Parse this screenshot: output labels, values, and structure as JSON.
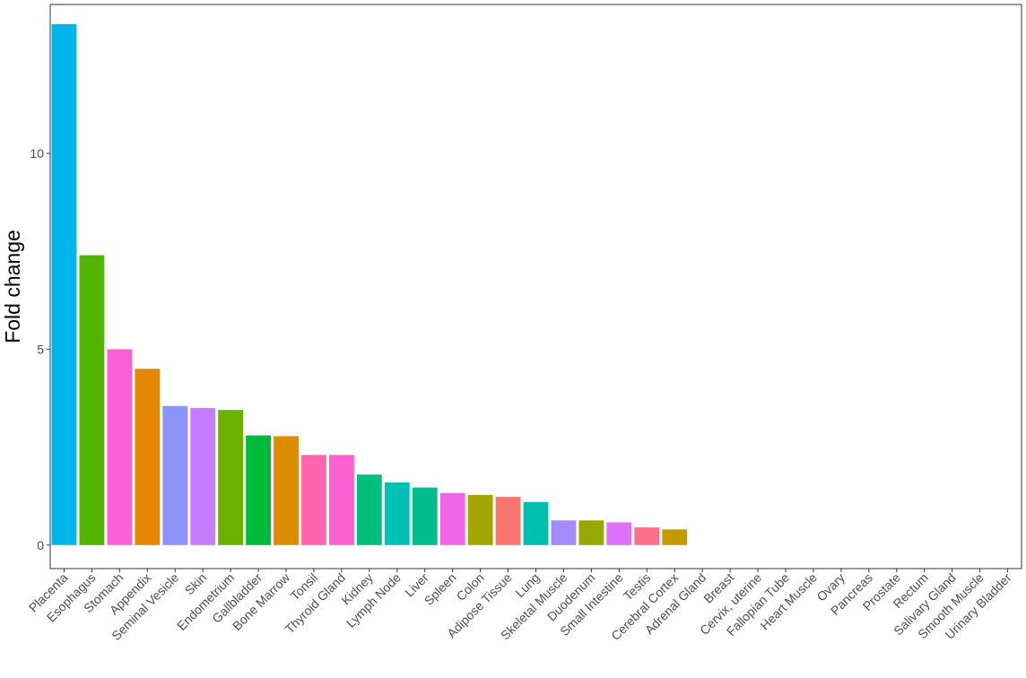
{
  "chart_data": {
    "type": "bar",
    "title": "",
    "xlabel": "",
    "ylabel": "Fold change",
    "ylim": [
      -0.6,
      13.8
    ],
    "yticks": [
      0,
      5,
      10
    ],
    "grid": false,
    "legend": "none",
    "categories": [
      "Placenta",
      "Esophagus",
      "Stomach",
      "Appendix",
      "Seminal Vesicle",
      "Skin",
      "Endometrium",
      "Gallbladder",
      "Bone Marrow",
      "Tonsil",
      "Thyroid Gland",
      "Kidney",
      "Lymph Node",
      "Liver",
      "Spleen",
      "Colon",
      "Adipose Tissue",
      "Lung",
      "Skeletal Muscle",
      "Duodenum",
      "Small Intestine",
      "Testis",
      "Cerebral Cortex",
      "Adrenal Gland",
      "Breast",
      "Cervix, uterine",
      "Fallopian Tube",
      "Heart Muscle",
      "Ovary",
      "Pancreas",
      "Prostate",
      "Rectum",
      "Salivary Gland",
      "Smooth Muscle",
      "Urinary Bladder"
    ],
    "values": [
      13.3,
      7.4,
      5.0,
      4.5,
      3.55,
      3.5,
      3.45,
      2.8,
      2.78,
      2.3,
      2.3,
      1.8,
      1.6,
      1.47,
      1.33,
      1.28,
      1.23,
      1.1,
      0.63,
      0.63,
      0.58,
      0.45,
      0.4,
      0,
      0,
      0,
      0,
      0,
      0,
      0,
      0,
      0,
      0,
      0,
      0
    ],
    "colors": [
      "#00B5EA",
      "#53B400",
      "#FB61D7",
      "#E58700",
      "#8B93FF",
      "#C77CFF",
      "#6BB100",
      "#00BA38",
      "#DB8E00",
      "#FF65AE",
      "#FD61D1",
      "#00BF7D",
      "#00C0B8",
      "#00BD8C",
      "#F166E8",
      "#A3A500",
      "#F8766D",
      "#00BFAF",
      "#A58AFF",
      "#95A900",
      "#DE71F9",
      "#FE6E8A",
      "#C49A00",
      "#888888",
      "#888888",
      "#888888",
      "#888888",
      "#888888",
      "#888888",
      "#888888",
      "#888888",
      "#888888",
      "#888888",
      "#888888",
      "#888888"
    ]
  }
}
